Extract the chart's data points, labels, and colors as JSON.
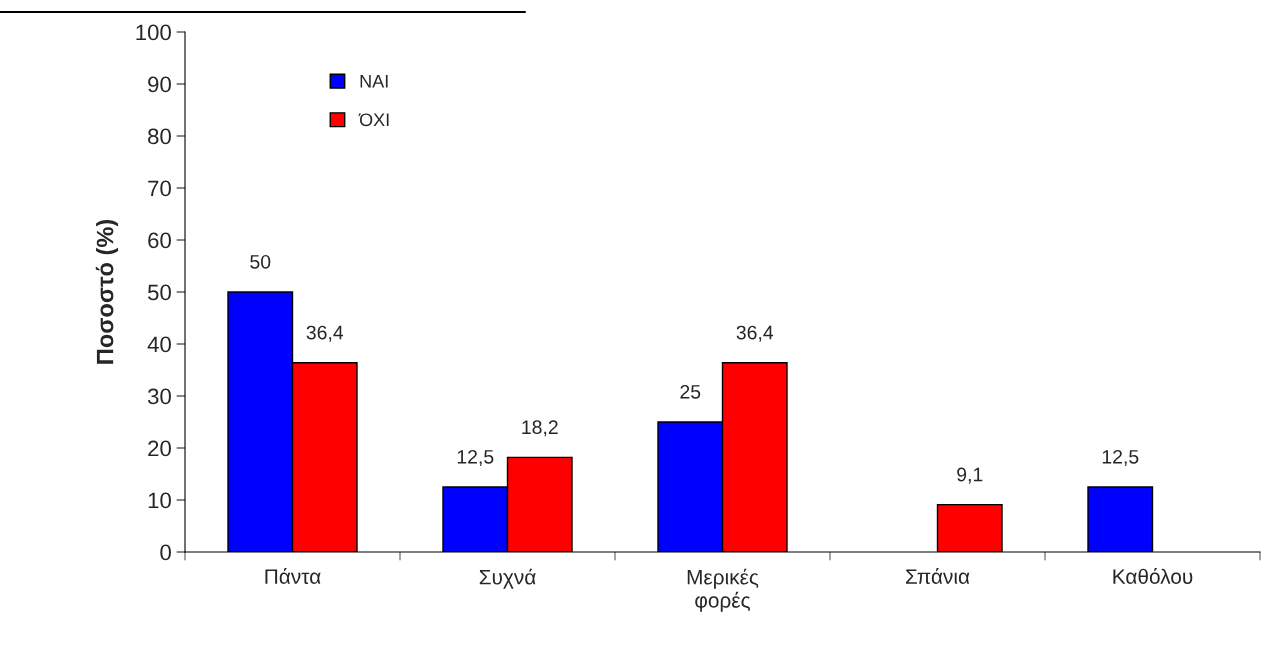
{
  "chart_data": {
    "type": "bar",
    "ylabel": "Ποσοστό (%)",
    "categories": [
      "Πάντα",
      "Συχνά",
      "Μερικές φορές",
      "Σπάνια",
      "Καθόλου"
    ],
    "series": [
      {
        "name": "ΝΑΙ",
        "color": "#0000ff",
        "values": [
          50,
          12.5,
          25,
          null,
          12.5
        ],
        "value_labels": [
          "50",
          "12,5",
          "25",
          null,
          "12,5"
        ]
      },
      {
        "name": "ΌΧΙ",
        "color": "#ff0000",
        "values": [
          36.4,
          18.2,
          36.4,
          9.1,
          null
        ],
        "value_labels": [
          "36,4",
          "18,2",
          "36,4",
          "9,1",
          null
        ]
      }
    ],
    "ylim": [
      0,
      100
    ],
    "yticks": [
      0,
      10,
      20,
      30,
      40,
      50,
      60,
      70,
      80,
      90,
      100
    ],
    "legend": "top left",
    "grid": false
  }
}
